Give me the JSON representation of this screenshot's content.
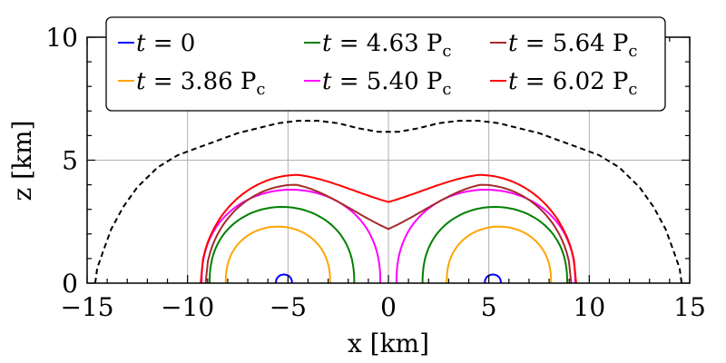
{
  "chart_data": {
    "type": "line",
    "xlabel": "x [km]",
    "ylabel": "z [km]",
    "xlim": [
      -15,
      15
    ],
    "ylim": [
      0,
      10
    ],
    "xticks": [
      -15,
      -10,
      -5,
      0,
      5,
      10,
      15
    ],
    "yticks": [
      0,
      5,
      10
    ],
    "xtick_labels": [
      "−15",
      "−10",
      "−5",
      "0",
      "5",
      "10",
      "15"
    ],
    "ytick_labels": [
      "0",
      "5",
      "10"
    ],
    "grid": true,
    "legend_position": "top-center",
    "envelope": {
      "name": "outer boundary",
      "style": "dashed",
      "color": "#000000",
      "x": [
        -14.6,
        -14.5,
        -14.2,
        -13.8,
        -13.2,
        -12.5,
        -11.5,
        -10.5,
        -9.5,
        -8.5,
        -7.5,
        -6.5,
        -5.5,
        -4.5,
        -3.5,
        -2.5,
        -1.5,
        -0.5,
        0,
        0.5,
        1.5,
        2.5,
        3.5,
        4.5,
        5.5,
        6.5,
        7.5,
        8.5,
        9.5,
        10.5,
        11.5,
        12.5,
        13.2,
        13.8,
        14.2,
        14.5,
        14.6
      ],
      "z": [
        0.0,
        0.6,
        1.3,
        2.2,
        3.1,
        3.9,
        4.7,
        5.2,
        5.5,
        5.8,
        6.1,
        6.3,
        6.5,
        6.6,
        6.6,
        6.5,
        6.3,
        6.15,
        6.15,
        6.15,
        6.3,
        6.5,
        6.6,
        6.6,
        6.5,
        6.3,
        6.1,
        5.8,
        5.5,
        5.2,
        4.7,
        3.9,
        3.1,
        2.2,
        1.3,
        0.6,
        0.0
      ]
    },
    "series": [
      {
        "name": "t = 0",
        "label_prefix": "t",
        "label_eq": "= 0",
        "color": "#0000ff",
        "type": "twin-loops",
        "centers": [
          -5.2,
          5.2
        ],
        "radius": 0.4,
        "height": 0.35
      },
      {
        "name": "t = 3.86 Pc",
        "label_prefix": "t",
        "label_eq": "= 3.86 P",
        "label_sub": "c",
        "color": "#ffa500",
        "type": "twin-loops",
        "centers": [
          -5.5,
          5.5
        ],
        "radius": 2.6,
        "height": 2.3
      },
      {
        "name": "t = 4.63 Pc",
        "label_prefix": "t",
        "label_eq": "= 4.63 P",
        "label_sub": "c",
        "color": "#008000",
        "type": "twin-loops",
        "centers": [
          -5.3,
          5.3
        ],
        "radius": 3.6,
        "height": 3.1
      },
      {
        "name": "t = 5.40 Pc",
        "label_prefix": "t",
        "label_eq": "= 5.40 P",
        "label_sub": "c",
        "color": "#ff00ff",
        "type": "twin-loops",
        "centers": [
          -4.85,
          4.85
        ],
        "radius": 4.45,
        "height": 3.8
      },
      {
        "name": "t = 5.64 Pc",
        "label_prefix": "t",
        "label_eq": "= 5.64 P",
        "label_sub": "c",
        "color": "#a52a2a",
        "type": "merged",
        "half_width": 9.1,
        "peak_x": 4.6,
        "peak": 4.0,
        "saddle": 2.2
      },
      {
        "name": "t = 6.02 Pc",
        "label_prefix": "t",
        "label_eq": "= 6.02 P",
        "label_sub": "c",
        "color": "#ff0000",
        "type": "merged",
        "half_width": 9.35,
        "peak_x": 4.5,
        "peak": 4.4,
        "saddle": 3.3
      }
    ]
  }
}
